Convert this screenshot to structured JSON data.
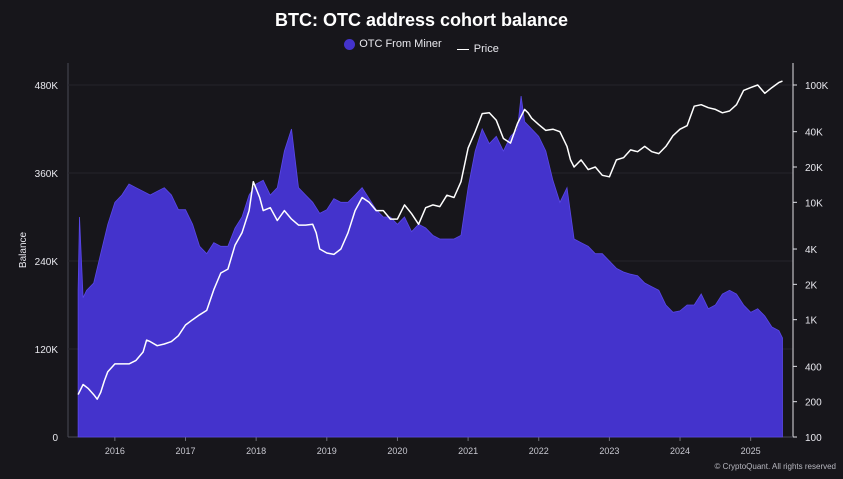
{
  "chart_data": {
    "type": "area",
    "title": "BTC: OTC address cohort balance",
    "ylabel": "Balance",
    "ylim": [
      0,
      480000
    ],
    "y_ticks": [
      "0",
      "120K",
      "240K",
      "360K",
      "480K"
    ],
    "y_tick_values": [
      0,
      120000,
      240000,
      360000,
      480000
    ],
    "y2_scale": "log",
    "y2lim": [
      100,
      100000
    ],
    "y2_ticks": [
      "100",
      "200",
      "400",
      "1K",
      "2K",
      "4K",
      "10K",
      "20K",
      "40K",
      "100K"
    ],
    "y2_tick_values": [
      100,
      200,
      400,
      1000,
      2000,
      4000,
      10000,
      20000,
      40000,
      100000
    ],
    "xlim": [
      2015.45,
      2025.5
    ],
    "x_ticks": [
      "2016",
      "2017",
      "2018",
      "2019",
      "2020",
      "2021",
      "2022",
      "2023",
      "2024",
      "2025"
    ],
    "x_tick_values": [
      2016,
      2017,
      2018,
      2019,
      2020,
      2021,
      2022,
      2023,
      2024,
      2025
    ],
    "legend": [
      "OTC From Miner",
      "Price"
    ],
    "legend_position": "top-center",
    "grid": false,
    "series": [
      {
        "name": "OTC From Miner",
        "axis": "left",
        "color": "#4433cc",
        "x": [
          2015.48,
          2015.5,
          2015.55,
          2015.6,
          2015.7,
          2015.8,
          2015.9,
          2016.0,
          2016.1,
          2016.2,
          2016.3,
          2016.4,
          2016.5,
          2016.6,
          2016.7,
          2016.8,
          2016.9,
          2017.0,
          2017.1,
          2017.2,
          2017.3,
          2017.4,
          2017.5,
          2017.6,
          2017.7,
          2017.8,
          2017.9,
          2018.0,
          2018.1,
          2018.2,
          2018.3,
          2018.4,
          2018.5,
          2018.6,
          2018.7,
          2018.8,
          2018.9,
          2019.0,
          2019.1,
          2019.2,
          2019.3,
          2019.4,
          2019.5,
          2019.6,
          2019.7,
          2019.8,
          2019.9,
          2020.0,
          2020.1,
          2020.2,
          2020.3,
          2020.4,
          2020.5,
          2020.6,
          2020.7,
          2020.8,
          2020.9,
          2021.0,
          2021.1,
          2021.2,
          2021.3,
          2021.4,
          2021.5,
          2021.6,
          2021.7,
          2021.75,
          2021.8,
          2021.9,
          2022.0,
          2022.1,
          2022.2,
          2022.3,
          2022.4,
          2022.5,
          2022.6,
          2022.7,
          2022.8,
          2022.9,
          2023.0,
          2023.1,
          2023.2,
          2023.3,
          2023.4,
          2023.5,
          2023.6,
          2023.7,
          2023.8,
          2023.9,
          2024.0,
          2024.1,
          2024.2,
          2024.3,
          2024.4,
          2024.5,
          2024.6,
          2024.7,
          2024.8,
          2024.9,
          2025.0,
          2025.1,
          2025.2,
          2025.3,
          2025.4,
          2025.45
        ],
        "y": [
          200000,
          300000,
          190000,
          200000,
          210000,
          250000,
          290000,
          320000,
          330000,
          345000,
          340000,
          335000,
          330000,
          335000,
          340000,
          330000,
          310000,
          310000,
          290000,
          260000,
          250000,
          265000,
          260000,
          260000,
          285000,
          300000,
          330000,
          345000,
          350000,
          330000,
          340000,
          390000,
          420000,
          340000,
          330000,
          320000,
          305000,
          310000,
          325000,
          320000,
          320000,
          330000,
          340000,
          325000,
          310000,
          300000,
          300000,
          290000,
          300000,
          280000,
          290000,
          285000,
          275000,
          270000,
          270000,
          270000,
          275000,
          340000,
          390000,
          420000,
          400000,
          410000,
          390000,
          410000,
          420000,
          465000,
          430000,
          420000,
          410000,
          390000,
          350000,
          320000,
          340000,
          270000,
          265000,
          260000,
          250000,
          250000,
          240000,
          230000,
          225000,
          222000,
          220000,
          210000,
          205000,
          200000,
          180000,
          170000,
          172000,
          180000,
          180000,
          195000,
          175000,
          180000,
          195000,
          200000,
          195000,
          180000,
          170000,
          175000,
          165000,
          150000,
          145000,
          135000
        ]
      },
      {
        "name": "Price",
        "axis": "right",
        "color": "#ffffff",
        "x": [
          2015.48,
          2015.55,
          2015.62,
          2015.7,
          2015.75,
          2015.8,
          2015.85,
          2015.9,
          2016.0,
          2016.1,
          2016.2,
          2016.3,
          2016.4,
          2016.45,
          2016.5,
          2016.6,
          2016.7,
          2016.8,
          2016.9,
          2017.0,
          2017.1,
          2017.2,
          2017.3,
          2017.4,
          2017.5,
          2017.6,
          2017.7,
          2017.8,
          2017.9,
          2017.96,
          2018.05,
          2018.1,
          2018.2,
          2018.3,
          2018.4,
          2018.5,
          2018.6,
          2018.7,
          2018.8,
          2018.85,
          2018.9,
          2019.0,
          2019.1,
          2019.2,
          2019.3,
          2019.4,
          2019.5,
          2019.6,
          2019.7,
          2019.8,
          2019.9,
          2020.0,
          2020.1,
          2020.2,
          2020.3,
          2020.4,
          2020.5,
          2020.6,
          2020.7,
          2020.8,
          2020.9,
          2021.0,
          2021.1,
          2021.2,
          2021.3,
          2021.4,
          2021.5,
          2021.6,
          2021.7,
          2021.8,
          2021.85,
          2021.9,
          2022.0,
          2022.1,
          2022.2,
          2022.3,
          2022.4,
          2022.45,
          2022.5,
          2022.6,
          2022.7,
          2022.8,
          2022.9,
          2023.0,
          2023.1,
          2023.2,
          2023.3,
          2023.4,
          2023.5,
          2023.6,
          2023.7,
          2023.8,
          2023.9,
          2024.0,
          2024.1,
          2024.2,
          2024.3,
          2024.4,
          2024.5,
          2024.6,
          2024.7,
          2024.8,
          2024.9,
          2025.0,
          2025.1,
          2025.2,
          2025.3,
          2025.4,
          2025.45
        ],
        "y": [
          230,
          280,
          260,
          230,
          210,
          240,
          300,
          360,
          420,
          420,
          420,
          450,
          530,
          670,
          650,
          600,
          620,
          650,
          730,
          900,
          1000,
          1100,
          1200,
          1800,
          2500,
          2700,
          4300,
          5500,
          8500,
          15000,
          11000,
          8500,
          9000,
          7000,
          8500,
          7200,
          6400,
          6400,
          6500,
          5500,
          4000,
          3700,
          3600,
          4000,
          5500,
          8500,
          11000,
          10000,
          8500,
          8500,
          7200,
          7200,
          9500,
          8000,
          6500,
          9000,
          9500,
          9200,
          11500,
          11000,
          15000,
          29000,
          40000,
          57000,
          58000,
          50000,
          35000,
          32000,
          47000,
          62000,
          58000,
          52000,
          46000,
          41000,
          42000,
          40000,
          30000,
          23000,
          20000,
          23000,
          19000,
          20000,
          17000,
          16500,
          23000,
          24000,
          28000,
          27000,
          30000,
          27000,
          26000,
          30000,
          37000,
          42000,
          45000,
          66000,
          68000,
          64000,
          62000,
          58000,
          60000,
          68000,
          90000,
          95000,
          100000,
          85000,
          95000,
          105000,
          108000
        ]
      }
    ]
  },
  "watermark": "© CryptoQuant. All rights reserved"
}
